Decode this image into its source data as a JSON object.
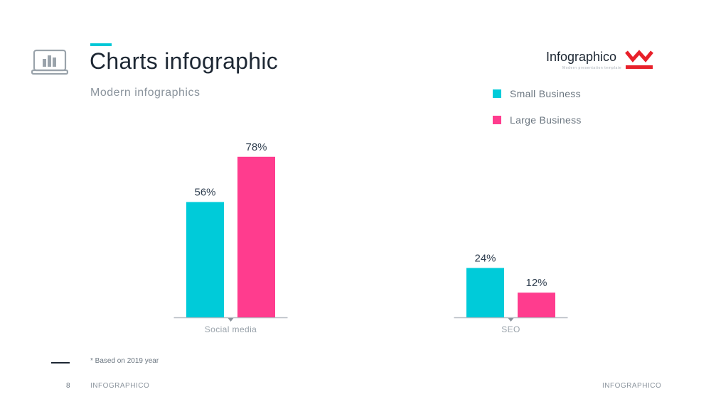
{
  "header": {
    "title": "Charts infographic",
    "subtitle": "Modern infographics",
    "icon": "laptop-chart-icon"
  },
  "brand": {
    "name": "Infographico",
    "tagline": "Modern presentation template",
    "logo_icon": "brand-w-logo-icon",
    "logo_color": "#e8202a"
  },
  "colors": {
    "accent": "#00c8d7",
    "small_business": "#00cbd9",
    "large_business": "#ff3c8e"
  },
  "chart_data": {
    "type": "bar",
    "categories": [
      "Social media",
      "SEO"
    ],
    "series": [
      {
        "name": "Small Business",
        "values": [
          56,
          24
        ],
        "labels": [
          "56%",
          "24%"
        ]
      },
      {
        "name": "Large Business",
        "values": [
          78,
          12
        ],
        "labels": [
          "78%",
          "12%"
        ]
      }
    ],
    "ylim": [
      0,
      100
    ],
    "unit": "%",
    "grid": false,
    "legend_position": "top-right"
  },
  "footer": {
    "note": "* Based  on 2019 year",
    "page_number": "8",
    "left_text": "INFOGRAPHICO",
    "right_text": "INFOGRAPHICO"
  }
}
